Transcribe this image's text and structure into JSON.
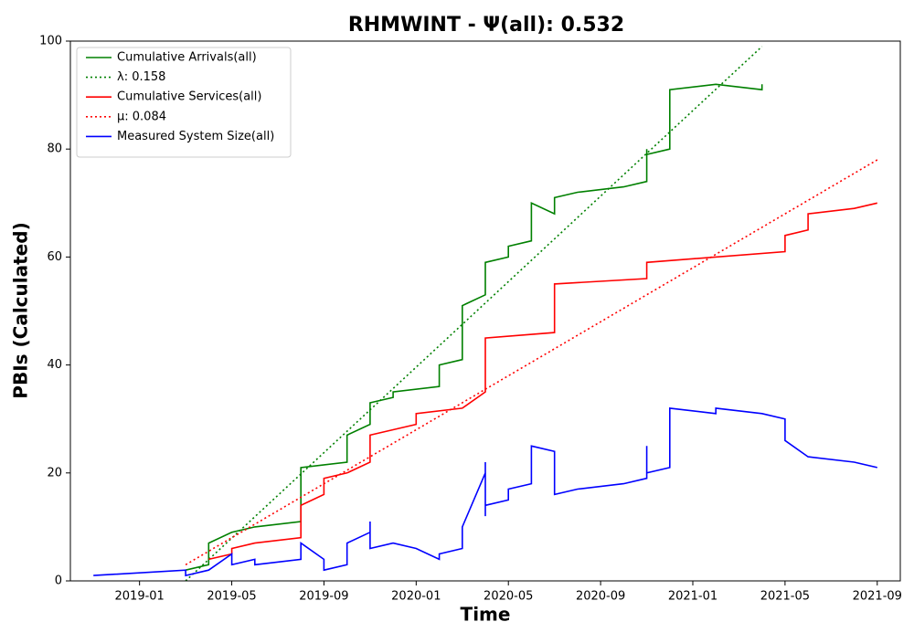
{
  "chart_data": {
    "type": "line",
    "title": "RHMWINT -  Ψ(all): 0.532",
    "xlabel": "Time",
    "ylabel": "PBIs (Calculated)",
    "xlim": [
      "2018-10",
      "2021-10"
    ],
    "xticks": [
      "2019-01",
      "2019-05",
      "2019-09",
      "2020-01",
      "2020-05",
      "2020-09",
      "2021-01",
      "2021-05",
      "2021-09"
    ],
    "ylim": [
      0,
      100
    ],
    "yticks": [
      0,
      20,
      40,
      60,
      80,
      100
    ],
    "legend": "upper left",
    "series": [
      {
        "name": "Cumulative Arrivals(all)",
        "color": "#008000",
        "dash": "solid",
        "x": [
          "2019-03",
          "2019-04",
          "2019-04",
          "2019-05",
          "2019-06",
          "2019-08",
          "2019-08",
          "2019-08",
          "2019-10",
          "2019-10",
          "2019-10",
          "2019-11",
          "2019-11",
          "2019-12",
          "2019-12",
          "2020-02",
          "2020-02",
          "2020-02",
          "2020-03",
          "2020-03",
          "2020-04",
          "2020-04",
          "2020-04",
          "2020-05",
          "2020-05",
          "2020-06",
          "2020-06",
          "2020-06",
          "2020-07",
          "2020-07",
          "2020-08",
          "2020-10",
          "2020-11",
          "2020-11",
          "2020-11",
          "2020-12",
          "2020-12",
          "2021-02",
          "2021-04",
          "2021-04"
        ],
        "values": [
          2,
          3,
          7,
          9,
          10,
          11,
          12,
          21,
          22,
          24,
          27,
          29,
          33,
          34,
          35,
          36,
          37,
          40,
          41,
          51,
          53,
          57,
          59,
          60,
          62,
          63,
          69,
          70,
          68,
          71,
          72,
          73,
          74,
          80,
          79,
          80,
          91,
          92,
          91,
          92
        ]
      },
      {
        "name": "λ: 0.158",
        "color": "#008000",
        "dash": "dotted",
        "x": [
          "2019-03",
          "2021-04"
        ],
        "values": [
          0,
          99
        ]
      },
      {
        "name": "Cumulative Services(all)",
        "color": "#ff0000",
        "dash": "solid",
        "x": [
          "2019-04",
          "2019-05",
          "2019-05",
          "2019-06",
          "2019-08",
          "2019-08",
          "2019-09",
          "2019-09",
          "2019-09",
          "2019-10",
          "2019-11",
          "2019-11",
          "2019-11",
          "2019-12",
          "2020-01",
          "2020-01",
          "2020-01",
          "2020-03",
          "2020-04",
          "2020-04",
          "2020-07",
          "2020-07",
          "2020-07",
          "2020-11",
          "2020-11",
          "2021-05",
          "2021-05",
          "2021-06",
          "2021-06",
          "2021-08",
          "2021-09"
        ],
        "values": [
          4,
          5,
          6,
          7,
          8,
          14,
          16,
          17,
          19,
          20,
          22,
          25,
          27,
          28,
          29,
          30,
          31,
          32,
          35,
          45,
          46,
          53,
          55,
          56,
          59,
          61,
          64,
          65,
          68,
          69,
          70
        ]
      },
      {
        "name": "μ: 0.084",
        "color": "#ff0000",
        "dash": "dotted",
        "x": [
          "2019-03",
          "2021-09"
        ],
        "values": [
          3,
          78
        ]
      },
      {
        "name": "Measured System Size(all)",
        "color": "#0000ff",
        "dash": "solid",
        "x": [
          "2018-11",
          "2019-03",
          "2019-03",
          "2019-04",
          "2019-05",
          "2019-05",
          "2019-06",
          "2019-06",
          "2019-08",
          "2019-08",
          "2019-08",
          "2019-09",
          "2019-09",
          "2019-10",
          "2019-10",
          "2019-10",
          "2019-11",
          "2019-11",
          "2019-11",
          "2019-11",
          "2019-12",
          "2020-01",
          "2020-02",
          "2020-02",
          "2020-03",
          "2020-03",
          "2020-03",
          "2020-04",
          "2020-04",
          "2020-04",
          "2020-04",
          "2020-05",
          "2020-05",
          "2020-06",
          "2020-06",
          "2020-06",
          "2020-07",
          "2020-07",
          "2020-08",
          "2020-10",
          "2020-11",
          "2020-11",
          "2020-11",
          "2020-11",
          "2020-12",
          "2020-12",
          "2021-02",
          "2021-02",
          "2021-04",
          "2021-05",
          "2021-05",
          "2021-05",
          "2021-06",
          "2021-08",
          "2021-09"
        ],
        "values": [
          1,
          2,
          1,
          2,
          5,
          3,
          4,
          3,
          4,
          5,
          7,
          4,
          2,
          3,
          5,
          7,
          9,
          11,
          8,
          6,
          7,
          6,
          4,
          5,
          6,
          9,
          10,
          20,
          22,
          12,
          14,
          15,
          17,
          18,
          24,
          25,
          24,
          16,
          17,
          18,
          19,
          25,
          21,
          20,
          21,
          32,
          31,
          32,
          31,
          30,
          27,
          26,
          23,
          22,
          21
        ]
      }
    ]
  }
}
